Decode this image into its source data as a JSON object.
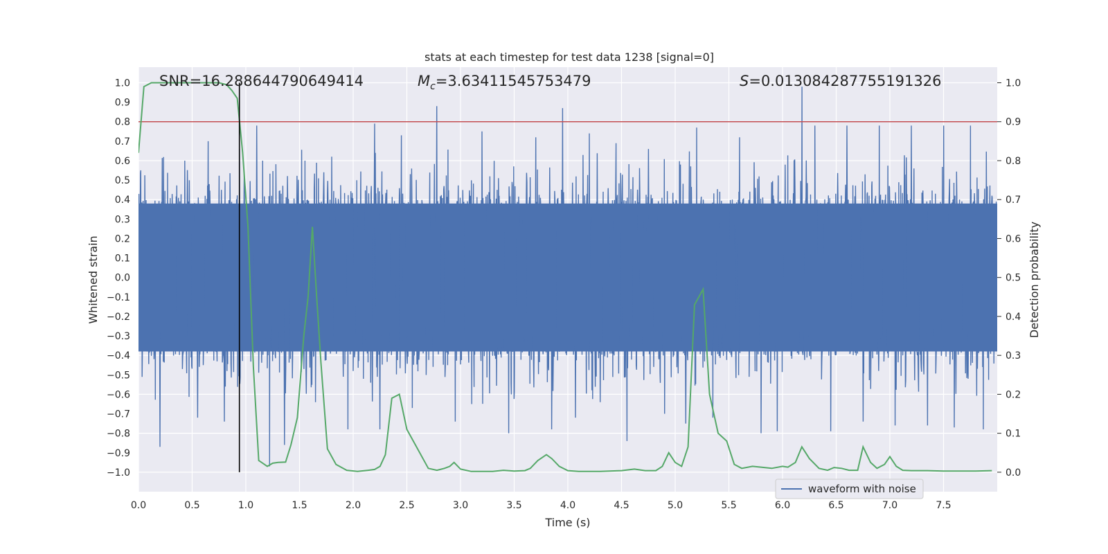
{
  "chart_data": {
    "type": "line",
    "title": "stats at each timestep for test data 1238 [signal=0]",
    "xlabel": "Time (s)",
    "ylabel_left": "Whitened strain",
    "ylabel_right": "Detection probability",
    "xlim": [
      0.0,
      8.0
    ],
    "ylim_left": [
      -1.1,
      1.08
    ],
    "ylim_right": [
      -0.05,
      1.04
    ],
    "x_ticks": [
      "0.0",
      "0.5",
      "1.0",
      "1.5",
      "2.0",
      "2.5",
      "3.0",
      "3.5",
      "4.0",
      "4.5",
      "5.0",
      "5.5",
      "6.0",
      "6.5",
      "7.0",
      "7.5"
    ],
    "y_left_ticks": [
      "1.0",
      "0.9",
      "0.8",
      "0.7",
      "0.6",
      "0.5",
      "0.4",
      "0.3",
      "0.2",
      "0.1",
      "0.0",
      "−0.1",
      "−0.2",
      "−0.3",
      "−0.4",
      "−0.5",
      "−0.6",
      "−0.7",
      "−0.8",
      "−0.9",
      "−1.0"
    ],
    "y_right_ticks": [
      "1.0",
      "0.9",
      "0.8",
      "0.7",
      "0.6",
      "0.5",
      "0.4",
      "0.3",
      "0.2",
      "0.1",
      "0.0"
    ],
    "grid": true,
    "colors": {
      "background": "#eaeaf2",
      "grid": "#ffffff",
      "waveform": "#4c72b0",
      "probability": "#55a868",
      "threshold": "#c44e52",
      "marker": "#000000"
    },
    "annotations": {
      "snr": "SNR=16.288644790649414",
      "mc_prefix": "M",
      "mc_sub": "c",
      "mc_value": "=3.63411545753479",
      "s_prefix": "S",
      "s_value": "=0.013084287755191326"
    },
    "threshold_line_right": 0.9,
    "vertical_marker_time": 0.94,
    "waveform": {
      "name": "waveform with noise",
      "envelope_abs": 0.4,
      "x": [
        0.02,
        0.2,
        0.43,
        0.55,
        0.65,
        0.8,
        0.94,
        1.1,
        1.22,
        1.36,
        1.55,
        1.65,
        1.8,
        1.95,
        2.2,
        2.25,
        2.45,
        2.55,
        2.78,
        2.95,
        3.2,
        3.45,
        3.7,
        3.85,
        3.95,
        4.07,
        4.2,
        4.3,
        4.45,
        4.55,
        4.75,
        4.9,
        5.05,
        5.1,
        5.2,
        5.35,
        5.6,
        5.8,
        5.95,
        6.18,
        6.3,
        6.45,
        6.6,
        6.75,
        6.9,
        7.05,
        7.2,
        7.35,
        7.5,
        7.6,
        7.75,
        7.87,
        7.95
      ],
      "y": [
        0.55,
        -0.87,
        0.6,
        -0.72,
        0.7,
        -0.74,
        0.66,
        0.78,
        -0.97,
        -0.86,
        0.6,
        -0.64,
        0.62,
        -0.78,
        0.79,
        -0.78,
        0.73,
        -0.67,
        0.88,
        -0.74,
        0.75,
        -0.8,
        0.72,
        -0.78,
        0.87,
        -0.72,
        0.74,
        -0.64,
        0.69,
        -0.84,
        0.66,
        -0.7,
        0.58,
        -0.75,
        0.77,
        -0.72,
        0.72,
        -0.8,
        -0.79,
        0.98,
        0.78,
        -0.79,
        0.78,
        -0.74,
        0.78,
        -0.76,
        0.78,
        -0.76,
        0.78,
        -0.77,
        0.78,
        -0.78,
        0.42
      ]
    },
    "probability": {
      "name": "detection probability",
      "x": [
        0.0,
        0.05,
        0.12,
        0.2,
        0.3,
        0.45,
        0.6,
        0.75,
        0.82,
        0.87,
        0.92,
        0.97,
        1.02,
        1.07,
        1.12,
        1.2,
        1.25,
        1.3,
        1.37,
        1.42,
        1.48,
        1.54,
        1.58,
        1.62,
        1.66,
        1.7,
        1.76,
        1.84,
        1.94,
        2.04,
        2.14,
        2.2,
        2.25,
        2.3,
        2.36,
        2.43,
        2.5,
        2.58,
        2.7,
        2.78,
        2.85,
        2.9,
        2.94,
        3.0,
        3.1,
        3.3,
        3.4,
        3.5,
        3.6,
        3.65,
        3.72,
        3.8,
        3.85,
        3.92,
        4.0,
        4.1,
        4.3,
        4.5,
        4.62,
        4.72,
        4.82,
        4.88,
        4.94,
        5.0,
        5.06,
        5.12,
        5.18,
        5.26,
        5.32,
        5.4,
        5.48,
        5.55,
        5.62,
        5.72,
        5.8,
        5.9,
        6.0,
        6.05,
        6.12,
        6.18,
        6.25,
        6.34,
        6.42,
        6.48,
        6.55,
        6.62,
        6.7,
        6.75,
        6.82,
        6.88,
        6.95,
        7.0,
        7.06,
        7.12,
        7.2,
        7.35,
        7.5,
        7.65,
        7.8,
        7.95
      ],
      "y": [
        0.82,
        0.99,
        1.0,
        1.0,
        1.0,
        1.0,
        1.0,
        1.0,
        0.995,
        0.98,
        0.96,
        0.82,
        0.63,
        0.27,
        0.03,
        0.015,
        0.023,
        0.025,
        0.026,
        0.07,
        0.14,
        0.35,
        0.45,
        0.63,
        0.45,
        0.28,
        0.06,
        0.02,
        0.005,
        0.002,
        0.005,
        0.007,
        0.015,
        0.045,
        0.19,
        0.2,
        0.11,
        0.07,
        0.01,
        0.005,
        0.01,
        0.015,
        0.025,
        0.008,
        0.002,
        0.002,
        0.005,
        0.003,
        0.004,
        0.01,
        0.03,
        0.045,
        0.035,
        0.015,
        0.004,
        0.002,
        0.002,
        0.004,
        0.008,
        0.004,
        0.004,
        0.015,
        0.05,
        0.025,
        0.015,
        0.065,
        0.43,
        0.47,
        0.2,
        0.1,
        0.08,
        0.02,
        0.01,
        0.015,
        0.013,
        0.01,
        0.015,
        0.013,
        0.025,
        0.065,
        0.035,
        0.01,
        0.005,
        0.012,
        0.01,
        0.005,
        0.005,
        0.065,
        0.025,
        0.01,
        0.02,
        0.04,
        0.015,
        0.005,
        0.004,
        0.004,
        0.003,
        0.003,
        0.003,
        0.004
      ]
    }
  }
}
